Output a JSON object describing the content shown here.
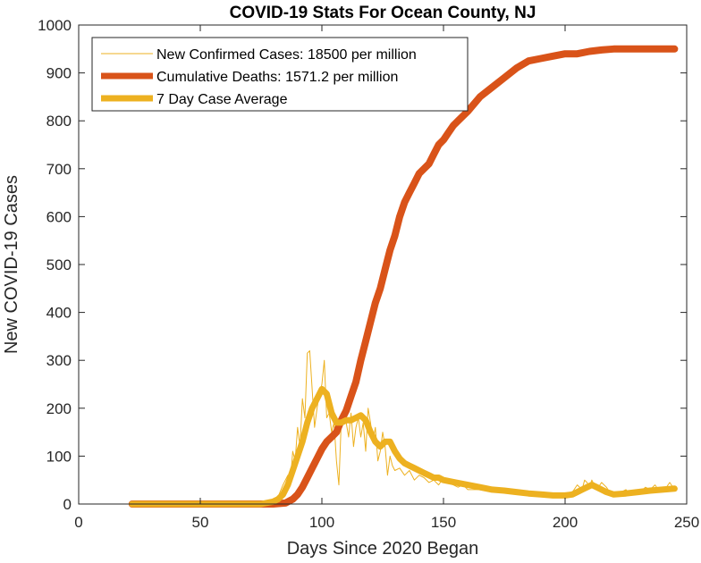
{
  "chart_data": {
    "type": "line",
    "title": "COVID-19 Stats For Ocean County, NJ",
    "xlabel": "Days Since 2020 Began",
    "ylabel": "New COVID-19 Cases",
    "xlim": [
      0,
      250
    ],
    "ylim": [
      0,
      1000
    ],
    "xticks": [
      0,
      50,
      100,
      150,
      200,
      250
    ],
    "yticks": [
      0,
      100,
      200,
      300,
      400,
      500,
      600,
      700,
      800,
      900,
      1000
    ],
    "grid": false,
    "legend_position": "top-left",
    "series": [
      {
        "name": "New Confirmed Cases: 18500 per million",
        "color": "#EDB120",
        "style": "thin",
        "x": [
          22,
          40,
          60,
          75,
          78,
          80,
          82,
          84,
          86,
          87,
          88,
          89,
          90,
          91,
          92,
          93,
          94,
          95,
          96,
          97,
          98,
          99,
          100,
          101,
          102,
          103,
          104,
          105,
          106,
          107,
          108,
          109,
          110,
          111,
          112,
          113,
          114,
          115,
          116,
          117,
          118,
          119,
          120,
          121,
          122,
          123,
          124,
          125,
          126,
          127,
          128,
          129,
          130,
          132,
          134,
          136,
          138,
          140,
          142,
          144,
          146,
          148,
          150,
          152,
          154,
          156,
          158,
          160,
          165,
          170,
          175,
          180,
          185,
          190,
          195,
          200,
          203,
          205,
          207,
          208,
          209,
          210,
          211,
          212,
          213,
          215,
          217,
          219,
          221,
          223,
          225,
          227,
          229,
          231,
          233,
          235,
          237,
          239,
          241,
          243,
          245
        ],
        "y": [
          0,
          0,
          0,
          0,
          2,
          5,
          15,
          40,
          60,
          45,
          110,
          90,
          160,
          120,
          220,
          180,
          315,
          320,
          240,
          160,
          200,
          230,
          250,
          300,
          180,
          190,
          150,
          170,
          90,
          40,
          180,
          200,
          170,
          140,
          190,
          120,
          160,
          180,
          140,
          170,
          110,
          200,
          170,
          130,
          160,
          90,
          110,
          150,
          120,
          60,
          100,
          80,
          70,
          75,
          60,
          70,
          50,
          60,
          55,
          45,
          50,
          40,
          55,
          45,
          40,
          35,
          40,
          30,
          30,
          25,
          30,
          20,
          18,
          20,
          15,
          20,
          25,
          40,
          30,
          50,
          45,
          35,
          50,
          40,
          30,
          45,
          35,
          20,
          15,
          25,
          30,
          20,
          30,
          25,
          35,
          30,
          40,
          25,
          30,
          45,
          30
        ]
      },
      {
        "name": "Cumulative Deaths: 1571.2 per million",
        "color": "#D95319",
        "style": "thick",
        "x": [
          22,
          50,
          80,
          85,
          88,
          90,
          92,
          94,
          96,
          98,
          100,
          102,
          104,
          106,
          108,
          110,
          112,
          114,
          116,
          118,
          120,
          122,
          124,
          126,
          128,
          130,
          132,
          134,
          136,
          138,
          140,
          142,
          144,
          146,
          148,
          150,
          152,
          154,
          156,
          158,
          160,
          165,
          170,
          175,
          180,
          185,
          190,
          195,
          200,
          205,
          210,
          215,
          220,
          225,
          230,
          235,
          240,
          245
        ],
        "y": [
          0,
          0,
          0,
          2,
          10,
          20,
          35,
          55,
          75,
          95,
          115,
          130,
          140,
          150,
          175,
          195,
          225,
          255,
          300,
          340,
          380,
          420,
          450,
          490,
          530,
          560,
          600,
          630,
          650,
          670,
          690,
          700,
          710,
          730,
          750,
          760,
          775,
          790,
          800,
          810,
          820,
          850,
          870,
          890,
          910,
          925,
          930,
          935,
          940,
          940,
          945,
          948,
          950,
          950,
          950,
          950,
          950,
          950
        ]
      },
      {
        "name": "7 Day Case Average",
        "color": "#EDB120",
        "style": "medium",
        "x": [
          22,
          40,
          60,
          75,
          80,
          82,
          84,
          86,
          88,
          90,
          92,
          94,
          96,
          98,
          100,
          102,
          104,
          106,
          108,
          110,
          112,
          114,
          116,
          118,
          120,
          122,
          124,
          126,
          128,
          130,
          132,
          134,
          136,
          138,
          140,
          142,
          144,
          146,
          148,
          150,
          155,
          160,
          165,
          170,
          175,
          180,
          185,
          190,
          195,
          200,
          203,
          205,
          207,
          209,
          211,
          213,
          215,
          217,
          220,
          225,
          230,
          235,
          240,
          245
        ],
        "y": [
          0,
          0,
          0,
          0,
          5,
          10,
          20,
          40,
          70,
          100,
          130,
          170,
          200,
          220,
          240,
          230,
          190,
          170,
          170,
          175,
          175,
          180,
          185,
          175,
          150,
          130,
          120,
          130,
          130,
          110,
          95,
          85,
          80,
          75,
          70,
          65,
          60,
          55,
          55,
          50,
          45,
          40,
          35,
          30,
          28,
          25,
          22,
          20,
          18,
          18,
          20,
          25,
          30,
          35,
          40,
          35,
          30,
          25,
          20,
          22,
          25,
          28,
          30,
          32
        ]
      }
    ]
  }
}
